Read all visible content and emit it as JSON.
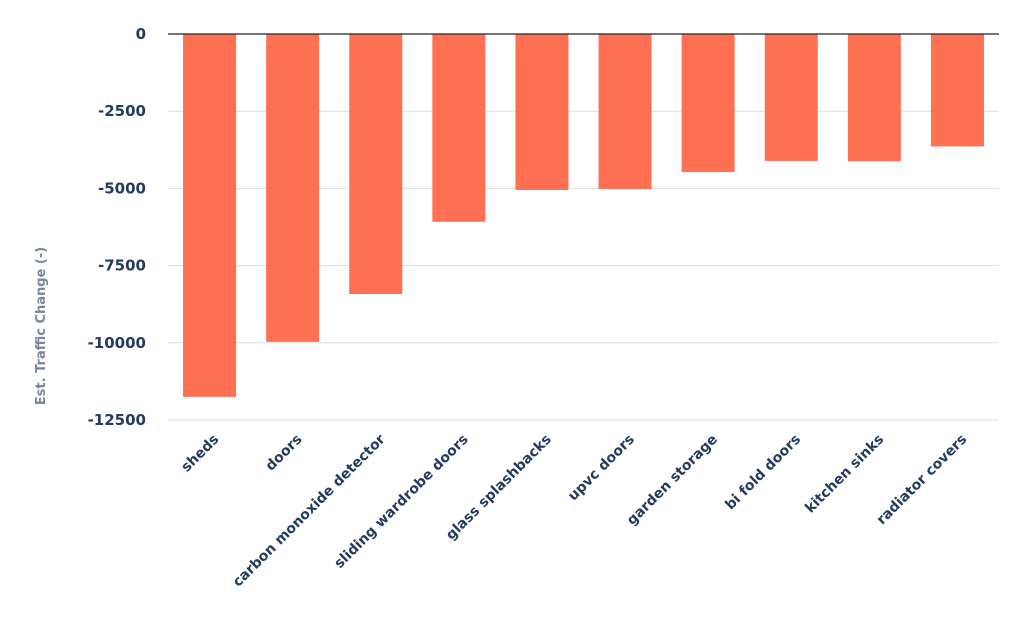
{
  "chart_data": {
    "type": "bar",
    "title": "",
    "xlabel": "",
    "ylabel": "Est. Traffic Change (-)",
    "categories": [
      "sheds",
      "doors",
      "carbon monoxide detector",
      "sliding wardrobe doors",
      "glass splashbacks",
      "upvc doors",
      "garden storage",
      "bi fold doors",
      "kitchen sinks",
      "radiator covers"
    ],
    "values": [
      -11750,
      -9970,
      -8420,
      -6080,
      -5050,
      -5020,
      -4470,
      -4110,
      -4120,
      -3640
    ],
    "ylim": [
      -12500,
      0
    ],
    "yticks": [
      0,
      -2500,
      -5000,
      -7500,
      -10000,
      -12500
    ],
    "ytick_labels": [
      "0",
      "-2500",
      "-5000",
      "-7500",
      "-10000",
      "-12500"
    ],
    "grid": true,
    "legend": "none",
    "bar_color": "#FF7052",
    "text_color": "#243B5E",
    "ylabel_color": "#7A879A",
    "grid_color": "#DDDDDD",
    "zero_line_color": "#222222"
  }
}
